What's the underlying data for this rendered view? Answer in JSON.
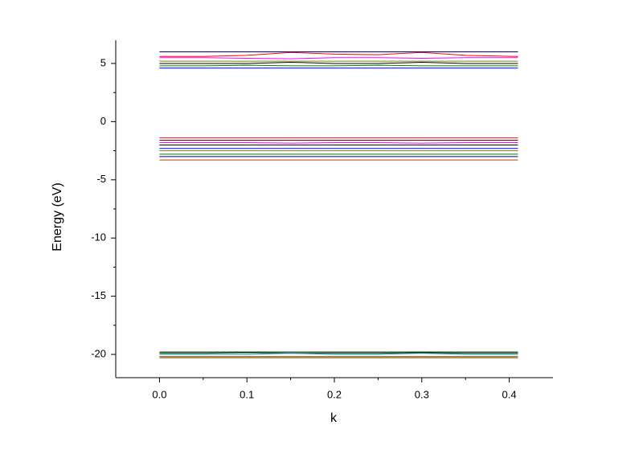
{
  "chart_data": {
    "type": "line",
    "x_label": "k",
    "y_label": "Energy (eV)",
    "x": [
      0,
      0.05,
      0.1,
      0.15,
      0.2,
      0.25,
      0.3,
      0.35,
      0.41
    ],
    "xlim": [
      -0.05,
      0.45
    ],
    "xticks": [
      {
        "value": 0,
        "label": "0.0"
      },
      0.1,
      0.2,
      0.3,
      0.4
    ],
    "ylim": [
      -22,
      7
    ],
    "yticks": [
      -20,
      -15,
      -10,
      -5,
      0,
      5
    ],
    "series": [
      {
        "color": "#000000",
        "values": [
          -19.8,
          -19.8,
          -19.8,
          -19.8,
          -19.8,
          -19.8,
          -19.8,
          -19.8,
          -19.8
        ]
      },
      {
        "color": "#006400",
        "values": [
          -19.9,
          -19.9,
          -19.85,
          -19.9,
          -19.9,
          -19.9,
          -19.85,
          -19.9,
          -19.9
        ]
      },
      {
        "color": "#00a0a0",
        "values": [
          -20.0,
          -20.0,
          -20.0,
          -19.9,
          -20.0,
          -20.0,
          -19.9,
          -20.0,
          -20.0
        ]
      },
      {
        "color": "#8b0000",
        "values": [
          -20.2,
          -20.2,
          -20.2,
          -20.2,
          -20.2,
          -20.2,
          -20.2,
          -20.2,
          -20.2
        ]
      },
      {
        "color": "#808000",
        "values": [
          -20.3,
          -20.3,
          -20.3,
          -20.3,
          -20.3,
          -20.3,
          -20.3,
          -20.3,
          -20.3
        ]
      },
      {
        "color": "#ff0000",
        "values": [
          -1.4,
          -1.4,
          -1.4,
          -1.4,
          -1.4,
          -1.4,
          -1.4,
          -1.4,
          -1.4
        ]
      },
      {
        "color": "#800000",
        "values": [
          -1.6,
          -1.6,
          -1.6,
          -1.6,
          -1.6,
          -1.6,
          -1.6,
          -1.6,
          -1.6
        ]
      },
      {
        "color": "#ff00ff",
        "values": [
          -1.8,
          -1.8,
          -1.8,
          -1.85,
          -1.8,
          -1.8,
          -1.85,
          -1.8,
          -1.8
        ]
      },
      {
        "color": "#000000",
        "values": [
          -2.0,
          -2.0,
          -2.0,
          -2.0,
          -2.0,
          -2.0,
          -2.0,
          -2.0,
          -2.0
        ]
      },
      {
        "color": "#0000ff",
        "values": [
          -2.3,
          -2.3,
          -2.3,
          -2.3,
          -2.3,
          -2.3,
          -2.3,
          -2.3,
          -2.3
        ]
      },
      {
        "color": "#808000",
        "values": [
          -2.5,
          -2.5,
          -2.5,
          -2.5,
          -2.5,
          -2.5,
          -2.5,
          -2.5,
          -2.5
        ]
      },
      {
        "color": "#008000",
        "values": [
          -2.8,
          -2.8,
          -2.8,
          -2.8,
          -2.8,
          -2.8,
          -2.8,
          -2.8,
          -2.8
        ]
      },
      {
        "color": "#000080",
        "values": [
          -3.0,
          -3.0,
          -3.0,
          -3.0,
          -3.0,
          -3.0,
          -3.0,
          -3.0,
          -3.0
        ]
      },
      {
        "color": "#c04000",
        "values": [
          -3.3,
          -3.3,
          -3.3,
          -3.3,
          -3.3,
          -3.3,
          -3.3,
          -3.3,
          -3.3
        ]
      },
      {
        "color": "#0000ff",
        "values": [
          4.6,
          4.6,
          4.6,
          4.6,
          4.6,
          4.6,
          4.6,
          4.6,
          4.6
        ]
      },
      {
        "color": "#008000",
        "values": [
          4.8,
          4.8,
          4.85,
          4.8,
          4.8,
          4.85,
          4.8,
          4.8,
          4.8
        ]
      },
      {
        "color": "#000000",
        "values": [
          5.0,
          5.0,
          5.0,
          5.1,
          5.0,
          5.0,
          5.1,
          5.0,
          5.0
        ]
      },
      {
        "color": "#808000",
        "values": [
          5.2,
          5.2,
          5.2,
          5.2,
          5.2,
          5.2,
          5.2,
          5.2,
          5.2
        ]
      },
      {
        "color": "#ff00ff",
        "values": [
          5.5,
          5.5,
          5.45,
          5.4,
          5.5,
          5.5,
          5.45,
          5.5,
          5.5
        ]
      },
      {
        "color": "#ff0000",
        "values": [
          5.6,
          5.6,
          5.7,
          5.95,
          5.8,
          5.75,
          5.95,
          5.7,
          5.6
        ]
      },
      {
        "color": "#000080",
        "values": [
          6.0,
          6.0,
          6.0,
          6.0,
          6.0,
          6.0,
          6.0,
          6.0,
          6.0
        ]
      }
    ]
  }
}
